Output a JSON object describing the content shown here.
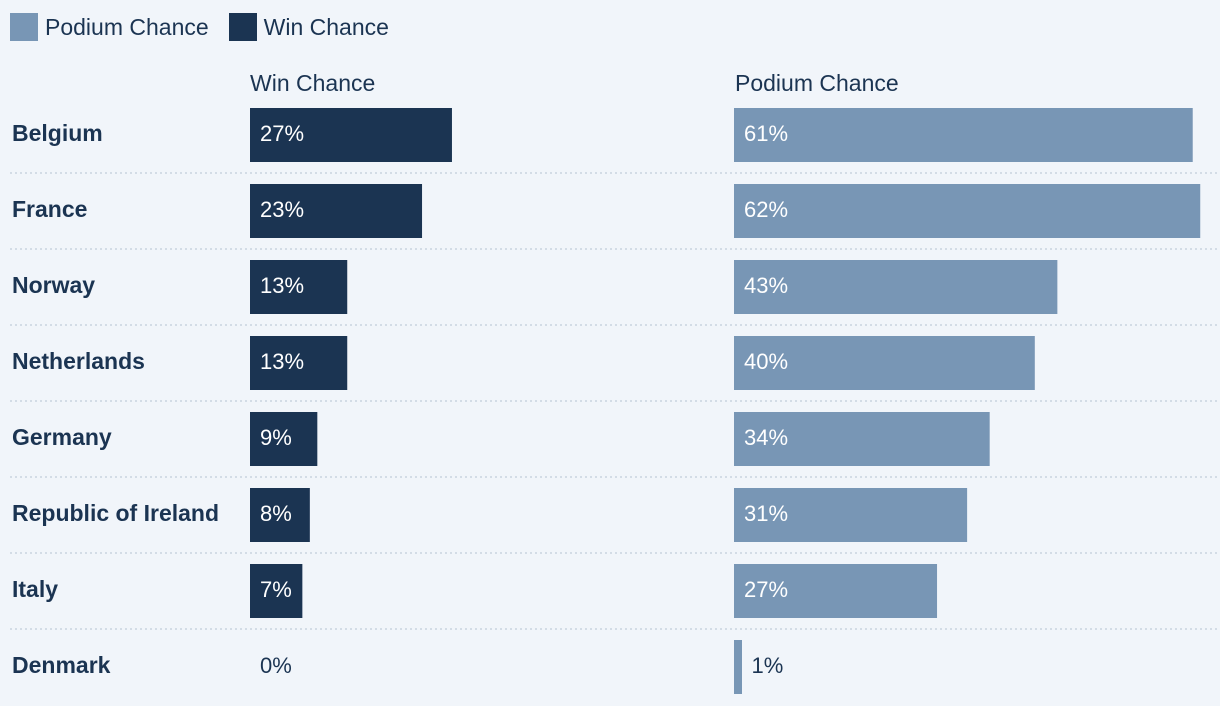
{
  "chart_data": {
    "type": "bar",
    "orientation": "horizontal",
    "categories": [
      "Belgium",
      "France",
      "Norway",
      "Netherlands",
      "Germany",
      "Republic of Ireland",
      "Italy",
      "Denmark"
    ],
    "series": [
      {
        "name": "Win Chance",
        "values": [
          27,
          23,
          13,
          13,
          9,
          8,
          7,
          0
        ],
        "labels": [
          "27%",
          "23%",
          "13%",
          "13%",
          "9%",
          "8%",
          "7%",
          "0%"
        ],
        "color": "#1b3452"
      },
      {
        "name": "Podium Chance",
        "values": [
          61,
          62,
          43,
          40,
          34,
          31,
          27,
          1
        ],
        "labels": [
          "61%",
          "62%",
          "43%",
          "40%",
          "34%",
          "31%",
          "27%",
          "1%"
        ],
        "color": "#7896b5"
      }
    ],
    "legend": {
      "placement": "top-left",
      "order": [
        "Podium Chance",
        "Win Chance"
      ]
    },
    "panel_titles": [
      "Win Chance",
      "Podium Chance"
    ],
    "grid": "dotted row separators"
  },
  "colors": {
    "background": "#f1f5fa",
    "text": "#1b3452",
    "label_on_bar": "#ffffff",
    "separator": "#c9d3df"
  }
}
